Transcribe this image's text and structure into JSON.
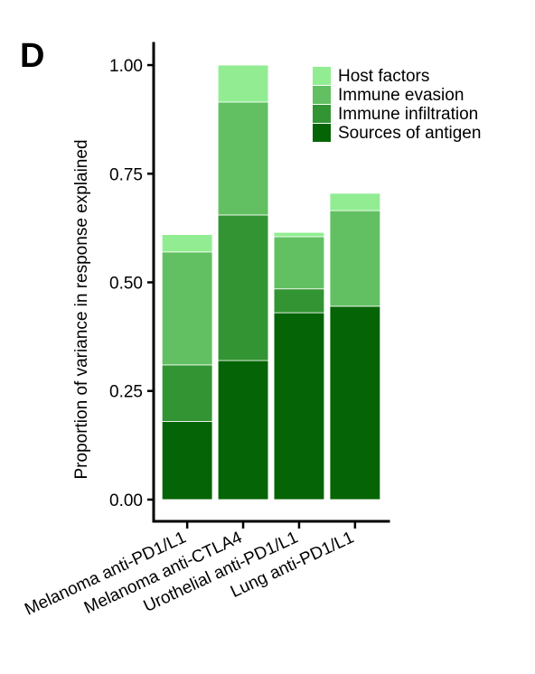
{
  "panel_label": "D",
  "chart_data": {
    "type": "bar",
    "stacked": true,
    "categories": [
      "Melanoma anti-PD1/L1",
      "Melanoma anti-CTLA4",
      "Urothelial anti-PD1/L1",
      "Lung anti-PD1/L1"
    ],
    "series": [
      {
        "name": "Sources of antigen",
        "color": "#056405",
        "values": [
          0.18,
          0.32,
          0.43,
          0.445
        ]
      },
      {
        "name": "Immune infiltration",
        "color": "#339433",
        "values": [
          0.13,
          0.335,
          0.055,
          0.0
        ]
      },
      {
        "name": "Immune evasion",
        "color": "#62c062",
        "values": [
          0.26,
          0.26,
          0.12,
          0.22
        ]
      },
      {
        "name": "Host factors",
        "color": "#92ed92",
        "values": [
          0.04,
          0.085,
          0.01,
          0.04
        ]
      }
    ],
    "legend_order": [
      "Host factors",
      "Immune evasion",
      "Immune infiltration",
      "Sources of antigen"
    ],
    "ylabel": "Proportion of variance in response explained",
    "xlabel": "",
    "ylim": [
      -0.05,
      1.05
    ],
    "yticks": [
      0.0,
      0.25,
      0.5,
      0.75,
      1.0
    ],
    "ytick_labels": [
      "0.00",
      "0.25",
      "0.50",
      "0.75",
      "1.00"
    ],
    "grid": false,
    "legend_position": "top-right"
  }
}
